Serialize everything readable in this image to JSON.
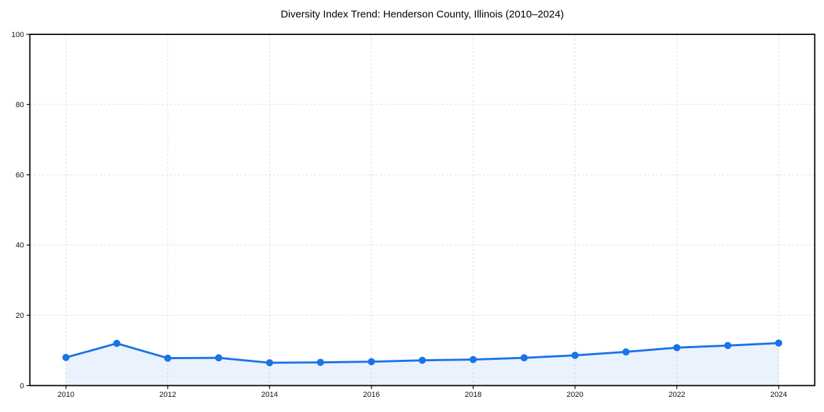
{
  "chart_data": {
    "type": "line",
    "title": "Diversity Index Trend: Henderson County, Illinois (2010–2024)",
    "x": [
      2010,
      2011,
      2012,
      2013,
      2014,
      2015,
      2016,
      2017,
      2018,
      2019,
      2020,
      2021,
      2022,
      2023,
      2024
    ],
    "values": [
      8.0,
      12.0,
      7.8,
      7.9,
      6.5,
      6.6,
      6.8,
      7.2,
      7.4,
      7.9,
      8.6,
      9.6,
      10.8,
      11.4,
      12.1
    ],
    "xlabel": "",
    "ylabel": "",
    "ylim": [
      0,
      100
    ],
    "yticks": [
      0,
      20,
      40,
      60,
      80,
      100
    ],
    "xticks": [
      2010,
      2012,
      2014,
      2016,
      2018,
      2020,
      2022,
      2024
    ],
    "grid": "dashed",
    "legend": false,
    "marker": "circle",
    "colors": {
      "line": "#1a73e8",
      "fill": "#1a73e8",
      "grid": "#dcdcdc",
      "axis": "#000000",
      "tick_text": "#111111",
      "background": "#ffffff"
    },
    "fill_opacity": 0.09
  }
}
